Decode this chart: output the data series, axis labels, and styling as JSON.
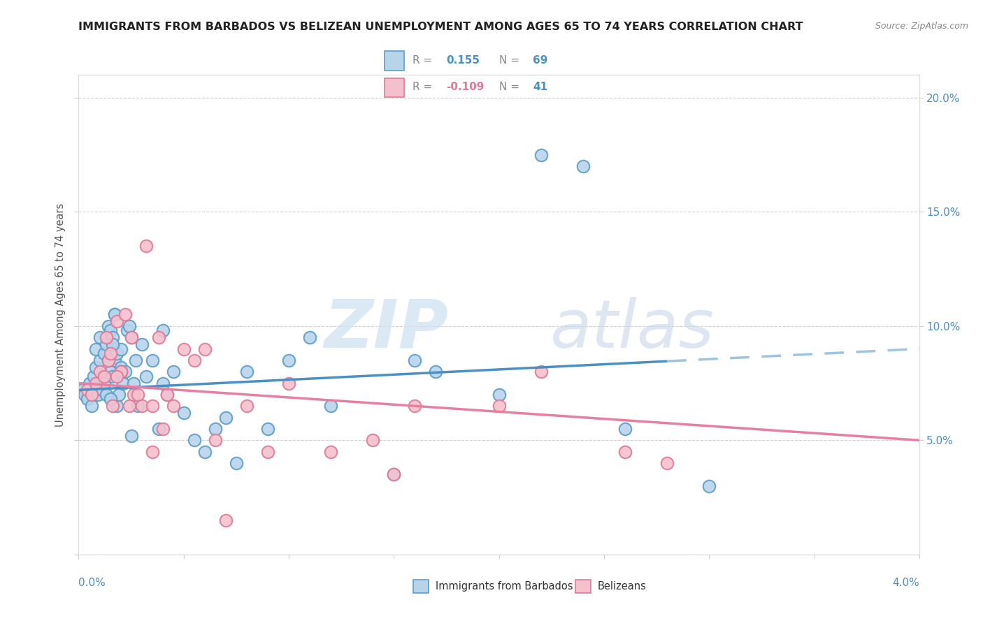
{
  "title": "IMMIGRANTS FROM BARBADOS VS BELIZEAN UNEMPLOYMENT AMONG AGES 65 TO 74 YEARS CORRELATION CHART",
  "source": "Source: ZipAtlas.com",
  "ylabel": "Unemployment Among Ages 65 to 74 years",
  "xlim": [
    0.0,
    4.0
  ],
  "ylim": [
    0.0,
    21.0
  ],
  "yticks_right": [
    5.0,
    10.0,
    15.0,
    20.0
  ],
  "ytick_labels_right": [
    "5.0%",
    "10.0%",
    "15.0%",
    "20.0%"
  ],
  "R_blue": "0.155",
  "N_blue": "69",
  "R_pink": "-0.109",
  "N_pink": "41",
  "label_blue": "Immigrants from Barbados",
  "label_pink": "Belizeans",
  "color_blue_fill": "#b8d4eb",
  "color_blue_edge": "#5a9ec9",
  "color_pink_fill": "#f5c0ce",
  "color_pink_edge": "#e07a96",
  "color_blue_line": "#4a90c4",
  "color_pink_line": "#e87fa0",
  "color_blue_dash": "#a0c4de",
  "watermark_zip_color": "#cce0f0",
  "watermark_atlas_color": "#c8d8e8",
  "blue_points_x": [
    0.02,
    0.03,
    0.04,
    0.05,
    0.06,
    0.07,
    0.08,
    0.08,
    0.09,
    0.1,
    0.1,
    0.11,
    0.12,
    0.12,
    0.13,
    0.14,
    0.15,
    0.15,
    0.16,
    0.16,
    0.17,
    0.17,
    0.18,
    0.18,
    0.19,
    0.2,
    0.2,
    0.21,
    0.22,
    0.23,
    0.24,
    0.25,
    0.26,
    0.27,
    0.28,
    0.3,
    0.32,
    0.35,
    0.38,
    0.4,
    0.42,
    0.45,
    0.5,
    0.55,
    0.6,
    0.65,
    0.7,
    0.75,
    0.8,
    0.9,
    1.0,
    1.1,
    1.2,
    1.5,
    1.6,
    1.7,
    2.0,
    2.2,
    2.4,
    2.6,
    3.0,
    0.13,
    0.14,
    0.15,
    0.16,
    0.17,
    0.2,
    0.25,
    0.4
  ],
  "blue_points_y": [
    7.2,
    7.0,
    6.8,
    7.5,
    6.5,
    7.8,
    8.2,
    9.0,
    7.0,
    8.5,
    9.5,
    7.2,
    8.8,
    7.5,
    9.2,
    10.0,
    9.8,
    8.0,
    9.5,
    7.8,
    8.5,
    10.5,
    8.8,
    6.5,
    7.0,
    9.0,
    8.2,
    7.5,
    8.0,
    9.8,
    10.0,
    9.5,
    7.5,
    8.5,
    6.5,
    9.2,
    7.8,
    8.5,
    5.5,
    7.5,
    7.0,
    8.0,
    6.2,
    5.0,
    4.5,
    5.5,
    6.0,
    4.0,
    8.0,
    5.5,
    8.5,
    9.5,
    6.5,
    3.5,
    8.5,
    8.0,
    7.0,
    17.5,
    17.0,
    5.5,
    3.0,
    7.0,
    8.5,
    6.8,
    9.2,
    10.5,
    8.0,
    5.2,
    9.8
  ],
  "pink_points_x": [
    0.04,
    0.06,
    0.08,
    0.1,
    0.12,
    0.13,
    0.14,
    0.15,
    0.16,
    0.18,
    0.2,
    0.22,
    0.24,
    0.25,
    0.26,
    0.28,
    0.3,
    0.32,
    0.35,
    0.38,
    0.4,
    0.42,
    0.45,
    0.5,
    0.55,
    0.6,
    0.65,
    0.7,
    0.8,
    0.9,
    1.0,
    1.2,
    1.4,
    1.5,
    1.6,
    2.0,
    2.2,
    2.6,
    2.8,
    0.18,
    0.35
  ],
  "pink_points_y": [
    7.2,
    7.0,
    7.5,
    8.0,
    7.8,
    9.5,
    8.5,
    8.8,
    6.5,
    10.2,
    8.0,
    10.5,
    6.5,
    9.5,
    7.0,
    7.0,
    6.5,
    13.5,
    6.5,
    9.5,
    5.5,
    7.0,
    6.5,
    9.0,
    8.5,
    9.0,
    5.0,
    1.5,
    6.5,
    4.5,
    7.5,
    4.5,
    5.0,
    3.5,
    6.5,
    6.5,
    8.0,
    4.5,
    4.0,
    7.8,
    4.5
  ],
  "blue_trend_y0": 7.2,
  "blue_trend_y4": 9.0,
  "blue_solid_end_x": 2.8,
  "pink_trend_y0": 7.5,
  "pink_trend_y4": 5.0
}
